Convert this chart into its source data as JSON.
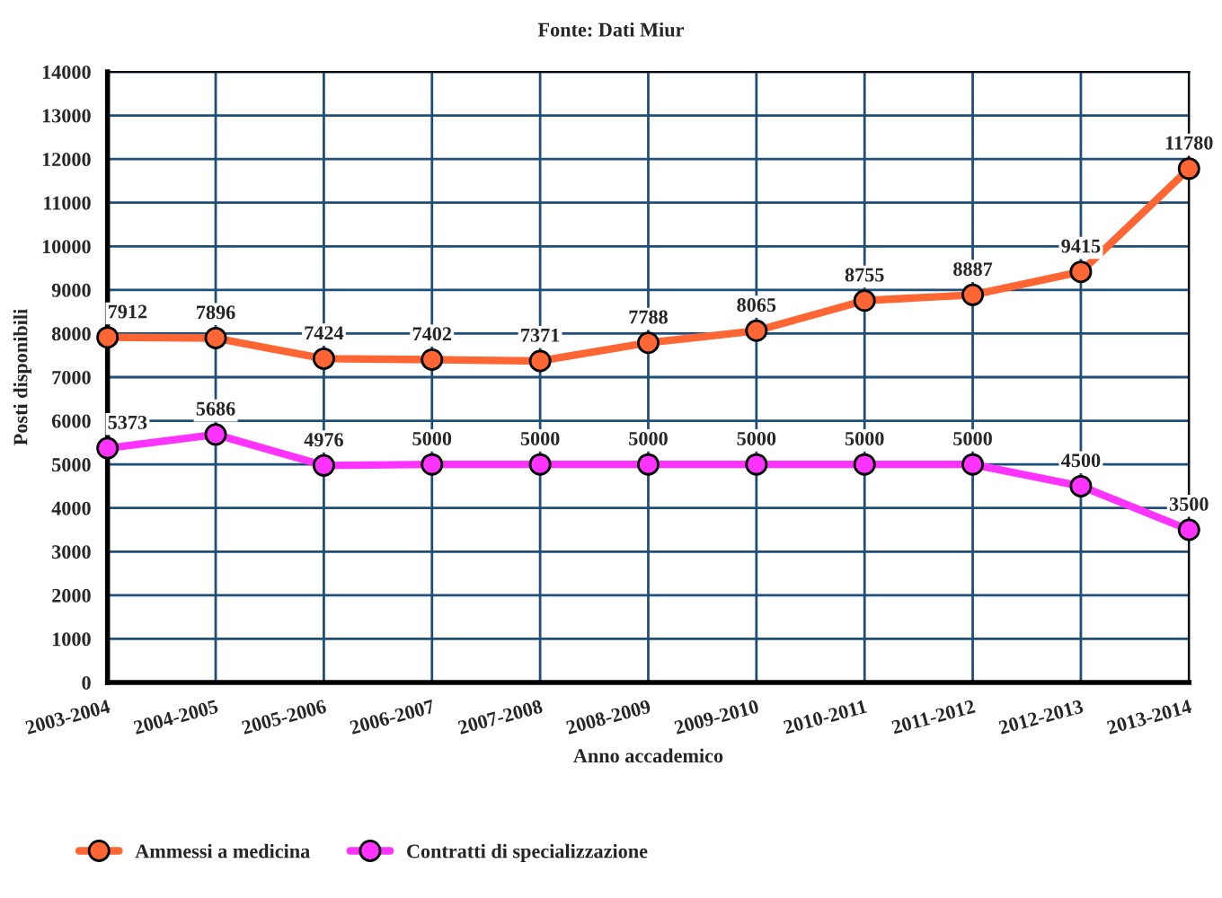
{
  "chart_data": {
    "type": "line",
    "title": "Fonte: Dati Miur",
    "xlabel": "Anno accademico",
    "ylabel": "Posti disponibili",
    "categories": [
      "2003-2004",
      "2004-2005",
      "2005-2006",
      "2006-2007",
      "2007-2008",
      "2008-2009",
      "2009-2010",
      "2010-2011",
      "2011-2012",
      "2012-2013",
      "2013-2014"
    ],
    "series": [
      {
        "name": "Ammessi a medicina",
        "color": "#ff6633",
        "values": [
          7912,
          7896,
          7424,
          7402,
          7371,
          7788,
          8065,
          8755,
          8887,
          9415,
          11780
        ]
      },
      {
        "name": "Contratti di specializzazione",
        "color": "#ff33ff",
        "values": [
          5373,
          5686,
          4976,
          5000,
          5000,
          5000,
          5000,
          5000,
          5000,
          4500,
          3500
        ]
      }
    ],
    "ylim": [
      0,
      14000
    ],
    "yticks": [
      0,
      1000,
      2000,
      3000,
      4000,
      5000,
      6000,
      7000,
      8000,
      9000,
      10000,
      11000,
      12000,
      13000,
      14000
    ],
    "grid": true,
    "legend": "bottom left",
    "marker": "circle",
    "line_style": "solid",
    "data_labels": true
  }
}
